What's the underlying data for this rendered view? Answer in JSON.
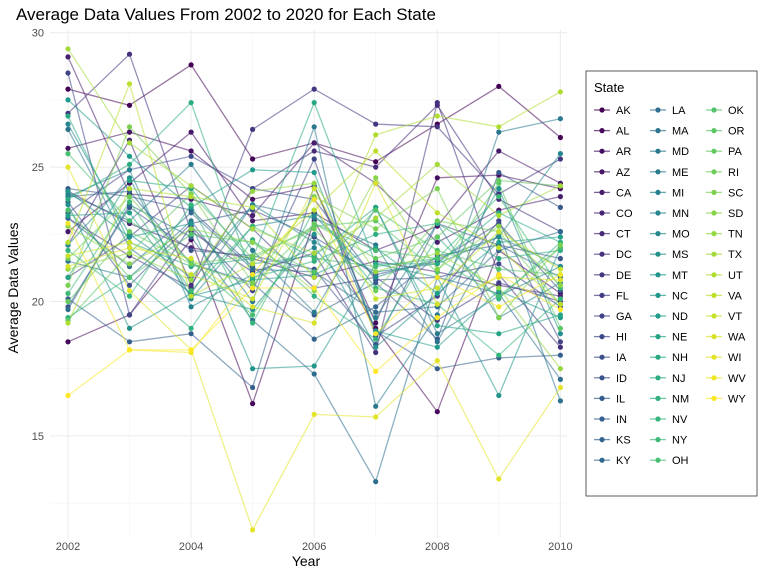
{
  "chart_data": {
    "type": "line",
    "title": "Average Data Values From 2002 to 2020 for Each State",
    "xlabel": "Year",
    "ylabel": "Average Data Values",
    "xlim": [
      2002,
      2010.4
    ],
    "ylim": [
      11.2,
      30.1
    ],
    "x_ticks": [
      2002,
      2004,
      2006,
      2008,
      2010
    ],
    "y_ticks": [
      15,
      20,
      25,
      30
    ],
    "grid": true,
    "legend_title": "State",
    "legend_position": "right",
    "x": [
      2002,
      2003,
      2004,
      2005,
      2006,
      2007,
      2008,
      2009,
      2010
    ],
    "series": [
      {
        "name": "AK",
        "values": [
          27.9,
          27.3,
          28.8,
          25.3,
          25.9,
          25.2,
          26.6,
          28.0,
          26.1
        ]
      },
      {
        "name": "AL",
        "values": [
          18.5,
          19.5,
          22.3,
          16.2,
          23.0,
          19.0,
          15.9,
          21.9,
          20.3
        ]
      },
      {
        "name": "AR",
        "values": [
          25.7,
          26.3,
          25.6,
          23.8,
          24.3,
          19.2,
          24.6,
          24.7,
          24.2
        ]
      },
      {
        "name": "AZ",
        "values": [
          22.6,
          24.4,
          26.3,
          23.0,
          23.3,
          21.9,
          22.8,
          25.6,
          24.4
        ]
      },
      {
        "name": "CA",
        "values": [
          29.1,
          24.0,
          23.8,
          23.2,
          25.9,
          24.4,
          22.2,
          23.4,
          23.9
        ]
      },
      {
        "name": "CO",
        "values": [
          24.1,
          22.9,
          22.0,
          21.6,
          20.9,
          21.5,
          21.1,
          20.6,
          20.2
        ]
      },
      {
        "name": "CT",
        "values": [
          22.1,
          26.0,
          20.6,
          24.2,
          25.6,
          25.0,
          27.3,
          23.8,
          22.6
        ]
      },
      {
        "name": "DC",
        "values": [
          27.0,
          29.2,
          22.6,
          21.1,
          21.8,
          18.1,
          27.4,
          21.0,
          18.3
        ]
      },
      {
        "name": "DE",
        "values": [
          23.1,
          21.7,
          20.5,
          26.4,
          27.9,
          26.6,
          26.5,
          24.0,
          25.3
        ]
      },
      {
        "name": "FL",
        "values": [
          20.9,
          22.4,
          24.3,
          22.7,
          20.5,
          20.9,
          19.3,
          20.7,
          20.0
        ]
      },
      {
        "name": "GA",
        "values": [
          28.5,
          19.5,
          22.8,
          20.4,
          25.3,
          18.7,
          20.2,
          23.0,
          18.5
        ]
      },
      {
        "name": "HI",
        "values": [
          23.3,
          24.9,
          25.4,
          24.2,
          23.8,
          20.8,
          20.9,
          21.4,
          19.8
        ]
      },
      {
        "name": "IA",
        "values": [
          23.7,
          20.6,
          22.9,
          23.4,
          22.4,
          21.0,
          21.5,
          22.9,
          20.4
        ]
      },
      {
        "name": "ID",
        "values": [
          19.8,
          23.5,
          21.9,
          21.7,
          21.2,
          18.4,
          22.9,
          22.1,
          21.6
        ]
      },
      {
        "name": "IL",
        "values": [
          24.2,
          23.9,
          23.4,
          21.3,
          19.5,
          20.7,
          18.6,
          24.8,
          23.5
        ]
      },
      {
        "name": "IN",
        "values": [
          20.1,
          18.5,
          18.8,
          16.8,
          24.3,
          18.9,
          17.5,
          17.9,
          18.0
        ]
      },
      {
        "name": "KS",
        "values": [
          23.9,
          24.1,
          21.4,
          20.7,
          18.6,
          19.8,
          21.7,
          22.1,
          20.9
        ]
      },
      {
        "name": "KY",
        "values": [
          23.1,
          21.3,
          23.3,
          21.2,
          21.1,
          19.6,
          19.8,
          21.9,
          22.6
        ]
      },
      {
        "name": "LA",
        "values": [
          19.7,
          23.6,
          22.4,
          19.3,
          17.3,
          13.3,
          20.9,
          20.3,
          17.1
        ]
      },
      {
        "name": "MA",
        "values": [
          26.4,
          22.0,
          20.3,
          23.6,
          23.1,
          22.1,
          18.5,
          22.6,
          16.3
        ]
      },
      {
        "name": "MD",
        "values": [
          21.5,
          20.9,
          23.0,
          20.0,
          26.5,
          16.1,
          19.5,
          26.3,
          26.8
        ]
      },
      {
        "name": "ME",
        "values": [
          24.0,
          23.0,
          25.1,
          21.9,
          19.6,
          23.5,
          18.8,
          20.2,
          21.3
        ]
      },
      {
        "name": "MI",
        "values": [
          23.9,
          24.9,
          19.8,
          21.0,
          22.0,
          19.4,
          22.9,
          19.4,
          20.7
        ]
      },
      {
        "name": "MN",
        "values": [
          26.6,
          22.5,
          20.9,
          23.6,
          22.2,
          21.1,
          21.4,
          22.4,
          25.5
        ]
      },
      {
        "name": "MO",
        "values": [
          22.1,
          24.6,
          20.1,
          22.8,
          23.2,
          20.9,
          21.6,
          22.4,
          21.3
        ]
      },
      {
        "name": "MS",
        "values": [
          23.6,
          19.0,
          20.3,
          19.7,
          22.5,
          18.3,
          20.3,
          24.2,
          18.8
        ]
      },
      {
        "name": "MT",
        "values": [
          24.1,
          22.4,
          22.9,
          17.5,
          17.6,
          21.4,
          20.9,
          16.5,
          22.0
        ]
      },
      {
        "name": "NC",
        "values": [
          27.5,
          25.4,
          23.5,
          24.9,
          24.8,
          18.9,
          18.3,
          20.4,
          19.4
        ]
      },
      {
        "name": "ND",
        "values": [
          23.2,
          23.3,
          20.2,
          20.8,
          21.0,
          22.0,
          20.3,
          22.2,
          22.4
        ]
      },
      {
        "name": "NE",
        "values": [
          20.9,
          24.5,
          24.2,
          21.4,
          21.7,
          23.5,
          19.1,
          18.8,
          19.5
        ]
      },
      {
        "name": "NH",
        "values": [
          26.9,
          22.2,
          21.3,
          21.6,
          27.4,
          21.4,
          21.4,
          23.3,
          22.2
        ]
      },
      {
        "name": "NJ",
        "values": [
          23.8,
          25.1,
          27.4,
          20.9,
          21.5,
          22.5,
          22.9,
          21.6,
          21.9
        ]
      },
      {
        "name": "NM",
        "values": [
          19.4,
          20.9,
          19.0,
          22.3,
          20.2,
          18.6,
          22.4,
          20.1,
          22.2
        ]
      },
      {
        "name": "NV",
        "values": [
          21.9,
          20.2,
          23.6,
          19.2,
          23.4,
          20.5,
          19.9,
          18.0,
          20.1
        ]
      },
      {
        "name": "NY",
        "values": [
          20.3,
          23.7,
          20.4,
          22.8,
          21.6,
          21.3,
          21.6,
          23.9,
          20.5
        ]
      },
      {
        "name": "OH",
        "values": [
          25.5,
          23.0,
          21.5,
          19.5,
          22.9,
          21.9,
          21.6,
          20.2,
          22.0
        ]
      },
      {
        "name": "OK",
        "values": [
          23.4,
          20.9,
          22.5,
          22.2,
          21.1,
          23.4,
          21.9,
          21.2,
          21.0
        ]
      },
      {
        "name": "OR",
        "values": [
          19.3,
          21.8,
          24.0,
          21.6,
          22.8,
          23.0,
          21.1,
          24.4,
          19.0
        ]
      },
      {
        "name": "PA",
        "values": [
          20.0,
          22.6,
          21.4,
          20.6,
          22.9,
          21.6,
          22.4,
          24.5,
          24.3
        ]
      },
      {
        "name": "RI",
        "values": [
          21.6,
          23.9,
          21.4,
          21.7,
          22.7,
          20.4,
          23.0,
          22.6,
          19.9
        ]
      },
      {
        "name": "SC",
        "values": [
          20.6,
          26.5,
          24.0,
          20.7,
          23.9,
          22.7,
          24.2,
          19.4,
          22.1
        ]
      },
      {
        "name": "SD",
        "values": [
          22.8,
          21.4,
          22.7,
          22.2,
          20.4,
          24.6,
          21.2,
          22.8,
          20.6
        ]
      },
      {
        "name": "TN",
        "values": [
          21.2,
          21.8,
          20.8,
          24.1,
          24.4,
          21.1,
          21.8,
          20.5,
          17.5
        ]
      },
      {
        "name": "TX",
        "values": [
          29.4,
          25.9,
          24.3,
          22.7,
          21.8,
          23.1,
          25.1,
          23.2,
          24.3
        ]
      },
      {
        "name": "UT",
        "values": [
          19.2,
          24.2,
          23.9,
          23.5,
          20.9,
          26.2,
          26.9,
          26.5,
          27.8
        ]
      },
      {
        "name": "VA",
        "values": [
          22.2,
          28.1,
          20.2,
          21.4,
          23.4,
          25.6,
          23.3,
          22.0,
          19.9
        ]
      },
      {
        "name": "VT",
        "values": [
          21.7,
          22.2,
          21.0,
          20.1,
          24.2,
          20.1,
          20.5,
          22.6,
          21.2
        ]
      },
      {
        "name": "WA",
        "values": [
          21.3,
          22.0,
          21.6,
          19.8,
          19.2,
          24.4,
          19.9,
          20.9,
          20.8
        ]
      },
      {
        "name": "WI",
        "values": [
          25.0,
          20.4,
          18.2,
          11.5,
          15.8,
          15.7,
          17.8,
          13.4,
          16.8
        ]
      },
      {
        "name": "WV",
        "values": [
          22.9,
          18.2,
          18.1,
          21.0,
          23.8,
          18.8,
          20.9,
          19.8,
          21.0
        ]
      },
      {
        "name": "WY",
        "values": [
          16.5,
          18.2,
          18.2,
          20.5,
          20.5,
          17.4,
          19.4,
          21.0,
          19.7
        ]
      }
    ]
  }
}
